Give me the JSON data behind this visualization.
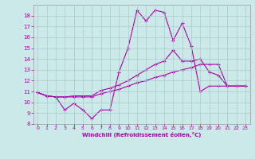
{
  "xlabel": "Windchill (Refroidissement éolien,°C)",
  "background_color": "#cce9e9",
  "grid_color": "#aacccc",
  "line_color": "#aa00aa",
  "x_ticks": [
    0,
    1,
    2,
    3,
    4,
    5,
    6,
    7,
    8,
    9,
    10,
    11,
    12,
    13,
    14,
    15,
    16,
    17,
    18,
    19,
    20,
    21,
    22,
    23
  ],
  "ylim": [
    8,
    19
  ],
  "xlim": [
    -0.5,
    23.5
  ],
  "y_ticks": [
    8,
    9,
    10,
    11,
    12,
    13,
    14,
    15,
    16,
    17,
    18
  ],
  "line1_x": [
    0,
    1,
    2,
    3,
    4,
    5,
    6,
    7,
    8,
    9,
    10,
    11,
    12,
    13,
    14,
    15,
    16,
    17,
    18,
    19,
    20,
    21,
    22,
    23
  ],
  "line1_y": [
    10.9,
    10.6,
    10.5,
    9.3,
    9.9,
    9.3,
    8.5,
    9.3,
    9.3,
    12.8,
    15.0,
    18.5,
    17.5,
    18.5,
    18.3,
    15.7,
    17.3,
    15.2,
    11.0,
    11.5,
    11.5,
    11.5,
    11.5,
    11.5
  ],
  "line2_x": [
    0,
    1,
    2,
    3,
    4,
    5,
    6,
    7,
    8,
    9,
    10,
    11,
    12,
    13,
    14,
    15,
    16,
    17,
    18,
    19,
    20,
    21,
    22,
    23
  ],
  "line2_y": [
    10.9,
    10.6,
    10.5,
    10.5,
    10.6,
    10.6,
    10.6,
    11.1,
    11.3,
    11.6,
    12.0,
    12.5,
    13.0,
    13.5,
    13.8,
    14.8,
    13.8,
    13.8,
    14.0,
    12.8,
    12.5,
    11.5,
    11.5,
    11.5
  ],
  "line3_x": [
    0,
    1,
    2,
    3,
    4,
    5,
    6,
    7,
    8,
    9,
    10,
    11,
    12,
    13,
    14,
    15,
    16,
    17,
    18,
    19,
    20,
    21,
    22,
    23
  ],
  "line3_y": [
    10.9,
    10.6,
    10.5,
    10.5,
    10.5,
    10.5,
    10.5,
    10.8,
    11.0,
    11.2,
    11.5,
    11.8,
    12.0,
    12.3,
    12.5,
    12.8,
    13.0,
    13.2,
    13.5,
    13.5,
    13.5,
    11.5,
    11.5,
    11.5
  ]
}
